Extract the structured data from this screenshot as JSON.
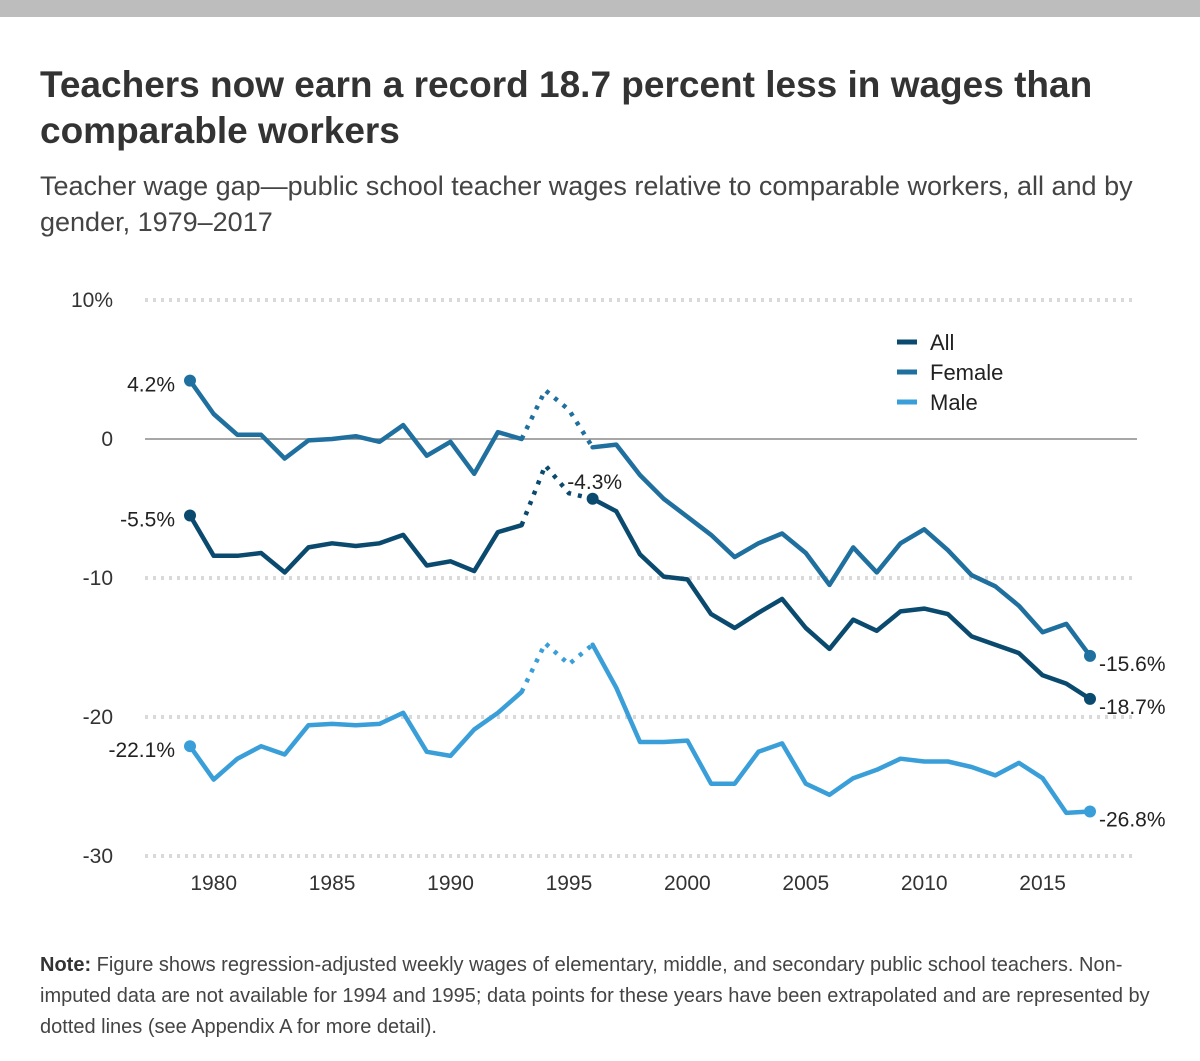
{
  "title": "Teachers now earn a record 18.7 percent less in wages than comparable workers",
  "subtitle": "Teacher wage gap—public school teacher wages relative to comparable workers, all and by gender, 1979–2017",
  "note": {
    "label": "Note:",
    "text": "Figure shows regression-adjusted weekly wages of elementary, middle, and secondary public school teachers. Non-imputed data are not available for 1994 and 1995; data points for these years have been extrapolated and are represented by dotted lines (see Appendix A for more detail)."
  },
  "chart_data": {
    "type": "line",
    "title": "Teachers now earn a record 18.7 percent less in wages than comparable workers",
    "xlabel": "",
    "ylabel": "",
    "x": [
      1979,
      1980,
      1981,
      1982,
      1983,
      1984,
      1985,
      1986,
      1987,
      1988,
      1989,
      1990,
      1991,
      1992,
      1993,
      1994,
      1995,
      1996,
      1997,
      1998,
      1999,
      2000,
      2001,
      2002,
      2003,
      2004,
      2005,
      2006,
      2007,
      2008,
      2009,
      2010,
      2011,
      2012,
      2013,
      2014,
      2015,
      2016,
      2017
    ],
    "xlim": [
      1976.5,
      2021
    ],
    "ylim": [
      -30,
      10
    ],
    "x_ticks": [
      1980,
      1985,
      1990,
      1995,
      2000,
      2005,
      2010,
      2015
    ],
    "y_ticks": [
      10,
      0,
      -10,
      -20,
      -30
    ],
    "y_tick_labels": [
      "10%",
      "0",
      "-10",
      "-20",
      "-30"
    ],
    "extrapolated_years": [
      1994,
      1995
    ],
    "grid": "horizontal dotted",
    "legend": "top-right",
    "series": [
      {
        "name": "All",
        "color": "#0b4a6f",
        "values": [
          -5.5,
          -8.4,
          -8.4,
          -8.2,
          -9.6,
          -7.8,
          -7.5,
          -7.7,
          -7.5,
          -6.9,
          -9.1,
          -8.8,
          -9.5,
          -6.7,
          -6.2,
          -1.9,
          -3.9,
          -4.3,
          -5.2,
          -8.3,
          -9.9,
          -10.1,
          -12.6,
          -13.6,
          -12.5,
          -11.5,
          -13.6,
          -15.1,
          -13.0,
          -13.8,
          -12.4,
          -12.2,
          -12.6,
          -14.2,
          -14.8,
          -15.4,
          -17.0,
          -17.6,
          -18.7
        ],
        "start_label": "-5.5%",
        "end_label": "-18.7%",
        "mid_label": "-4.3%"
      },
      {
        "name": "Female",
        "color": "#1f6f9f",
        "values": [
          4.2,
          1.8,
          0.3,
          0.3,
          -1.4,
          -0.1,
          0.0,
          0.2,
          -0.2,
          1.0,
          -1.2,
          -0.2,
          -2.5,
          0.5,
          0.0,
          3.5,
          2.1,
          -0.6,
          -0.4,
          -2.6,
          -4.3,
          -5.6,
          -6.9,
          -8.5,
          -7.5,
          -6.8,
          -8.2,
          -10.5,
          -7.8,
          -9.6,
          -7.5,
          -6.5,
          -8.0,
          -9.8,
          -10.6,
          -12.0,
          -13.9,
          -13.3,
          -15.6
        ],
        "start_label": "4.2%",
        "end_label": "-15.6%"
      },
      {
        "name": "Male",
        "color": "#3a9fd8",
        "values": [
          -22.1,
          -24.5,
          -23.0,
          -22.1,
          -22.7,
          -20.6,
          -20.5,
          -20.6,
          -20.5,
          -19.7,
          -22.5,
          -22.8,
          -20.9,
          -19.7,
          -18.2,
          -14.7,
          -16.2,
          -14.8,
          -17.9,
          -21.8,
          -21.8,
          -21.7,
          -24.8,
          -24.8,
          -22.5,
          -21.9,
          -24.8,
          -25.6,
          -24.4,
          -23.8,
          -23.0,
          -23.2,
          -23.2,
          -23.6,
          -24.2,
          -23.3,
          -24.4,
          -26.9,
          -26.8
        ],
        "start_label": "-22.1%",
        "end_label": "-26.8%"
      }
    ]
  }
}
